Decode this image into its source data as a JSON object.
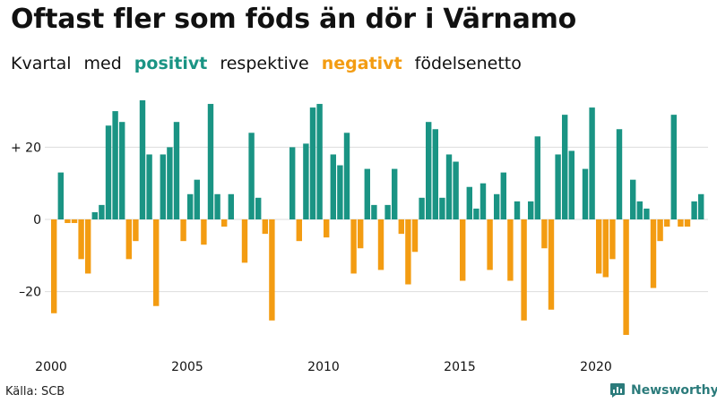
{
  "title": "Oftast fler som föds än dör i Värnamo",
  "subtitle": {
    "part1": "Kvartal",
    "part2": "med",
    "positive": "positivt",
    "part3": "respektive",
    "negative": "negativt",
    "part4": "födelsenetto"
  },
  "source": "Källa: SCB",
  "brand": "Newsworthy",
  "colors": {
    "positive": "#1a9484",
    "negative": "#f39c12",
    "grid": "#dddddd"
  },
  "chart_data": {
    "type": "bar",
    "start_year": 2000,
    "values": [
      -26,
      13,
      -1,
      -1,
      -11,
      -15,
      2,
      4,
      26,
      30,
      27,
      -11,
      -6,
      33,
      18,
      -24,
      18,
      20,
      27,
      -6,
      7,
      11,
      -7,
      32,
      7,
      -2,
      7,
      0,
      -12,
      24,
      6,
      -4,
      -28,
      0,
      0,
      20,
      -6,
      21,
      31,
      32,
      -5,
      18,
      15,
      24,
      -15,
      -8,
      14,
      4,
      -14,
      4,
      14,
      -4,
      -18,
      -9,
      6,
      27,
      25,
      6,
      18,
      16,
      -17,
      9,
      3,
      10,
      -14,
      7,
      13,
      -17,
      5,
      -28,
      5,
      23,
      -8,
      -25,
      18,
      29,
      19,
      0,
      14,
      31,
      -15,
      -16,
      -11,
      25,
      -32,
      11,
      5,
      3,
      -19,
      -6,
      -2,
      29,
      -2,
      -2,
      5,
      7
    ],
    "yticks": [
      {
        "value": 20,
        "label": "+ 20"
      },
      {
        "value": 0,
        "label": "0"
      },
      {
        "value": -20,
        "label": "–20"
      }
    ],
    "xticks": [
      "2000",
      "2005",
      "2010",
      "2015",
      "2020"
    ],
    "ylim": [
      -35,
      35
    ]
  }
}
